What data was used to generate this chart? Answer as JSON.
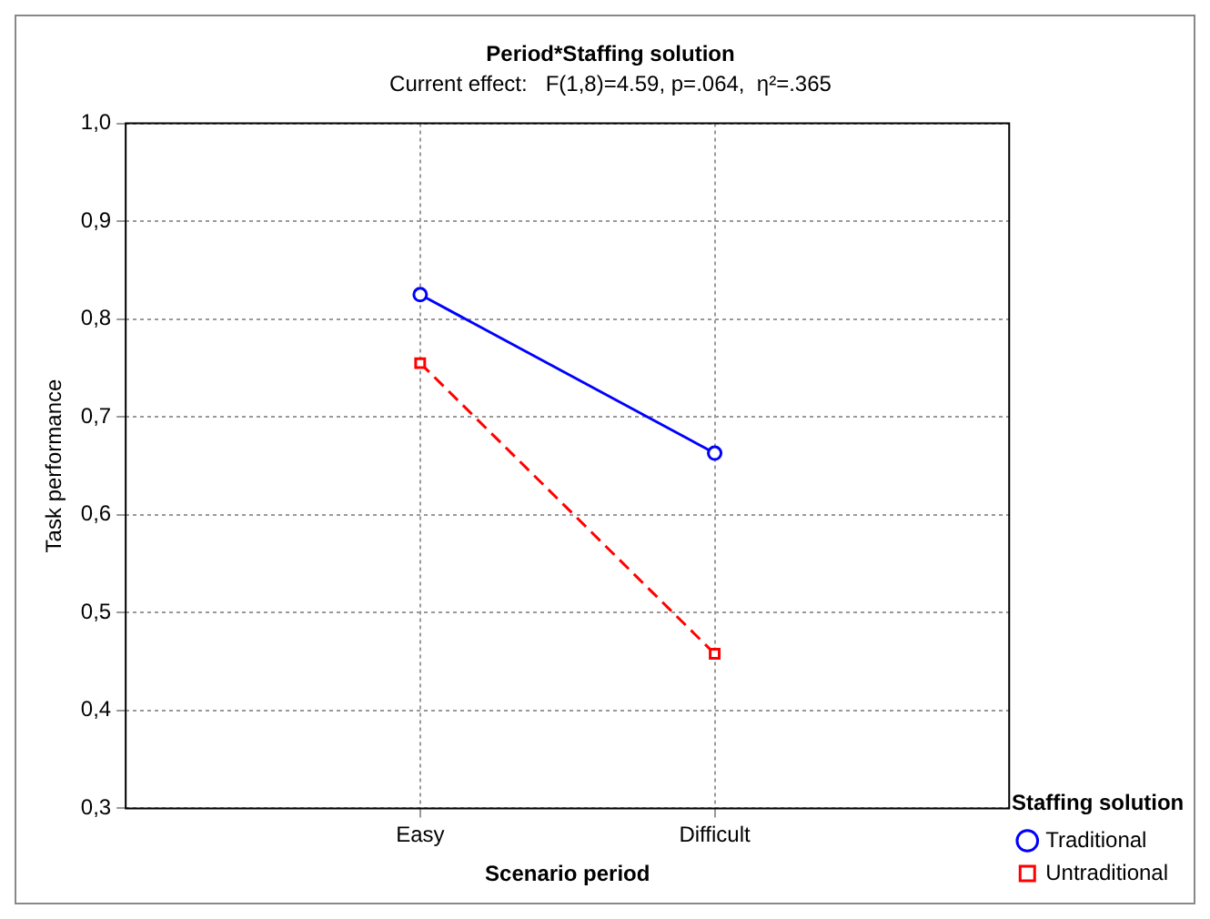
{
  "chart_data": {
    "type": "line",
    "title": "Period*Staffing solution",
    "subtitle": "Current effect:   F(1,8)=4.59, p=.064,  η²=.365",
    "xlabel": "Scenario period",
    "ylabel": "Task performance",
    "legend_title": "Staffing solution",
    "categories": [
      "Easy",
      "Difficult"
    ],
    "series": [
      {
        "name": "Traditional",
        "color": "#0000ff",
        "values": [
          0.825,
          0.663
        ],
        "marker": "circle",
        "line_style": "solid"
      },
      {
        "name": "Untraditional",
        "color": "#ff0000",
        "values": [
          0.755,
          0.458
        ],
        "marker": "square",
        "line_style": "dashed"
      }
    ],
    "ylim": [
      0.3,
      1.0
    ],
    "yticks": [
      {
        "value": 0.3,
        "label": "0,3"
      },
      {
        "value": 0.4,
        "label": "0,4"
      },
      {
        "value": 0.5,
        "label": "0,5"
      },
      {
        "value": 0.6,
        "label": "0,6"
      },
      {
        "value": 0.7,
        "label": "0,7"
      },
      {
        "value": 0.8,
        "label": "0,8"
      },
      {
        "value": 0.9,
        "label": "0,9"
      },
      {
        "value": 1.0,
        "label": "1,0"
      }
    ],
    "grid": true,
    "legend": "bottom right"
  }
}
